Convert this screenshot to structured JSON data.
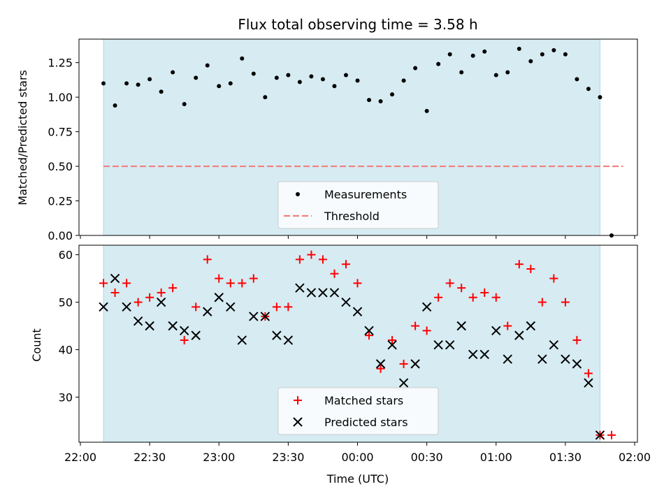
{
  "chart_data": [
    {
      "type": "scatter",
      "title": "Flux total observing time = 3.58 h",
      "ylabel": "Matched/Predicted stars",
      "ylim": [
        0,
        1.42
      ],
      "yticks": [
        "0.00",
        "0.25",
        "0.50",
        "0.75",
        "1.00",
        "1.25"
      ],
      "shaded_range": [
        "22:10",
        "01:45"
      ],
      "legend": {
        "placement": "bottom-center",
        "entries": [
          "Measurements",
          "Threshold"
        ]
      },
      "series": [
        {
          "name": "Measurements",
          "color": "#000000",
          "x": [
            "22:10",
            "22:15",
            "22:20",
            "22:25",
            "22:30",
            "22:35",
            "22:40",
            "22:45",
            "22:50",
            "22:55",
            "23:00",
            "23:05",
            "23:10",
            "23:15",
            "23:20",
            "23:25",
            "23:30",
            "23:35",
            "23:40",
            "23:45",
            "23:50",
            "23:55",
            "00:00",
            "00:05",
            "00:10",
            "00:15",
            "00:20",
            "00:25",
            "00:30",
            "00:35",
            "00:40",
            "00:45",
            "00:50",
            "00:55",
            "01:00",
            "01:05",
            "01:10",
            "01:15",
            "01:20",
            "01:25",
            "01:30",
            "01:35",
            "01:40",
            "01:45",
            "01:50"
          ],
          "y": [
            1.1,
            0.94,
            1.1,
            1.09,
            1.13,
            1.04,
            1.18,
            0.95,
            1.14,
            1.23,
            1.08,
            1.1,
            1.28,
            1.17,
            1.0,
            1.14,
            1.16,
            1.11,
            1.15,
            1.13,
            1.08,
            1.16,
            1.12,
            0.98,
            0.97,
            1.02,
            1.12,
            1.21,
            0.9,
            1.24,
            1.31,
            1.18,
            1.3,
            1.33,
            1.16,
            1.18,
            1.35,
            1.26,
            1.31,
            1.34,
            1.31,
            1.13,
            1.06,
            1.0,
            0.0
          ]
        },
        {
          "name": "Threshold",
          "color": "#f08080",
          "x": [
            "22:10",
            "01:55"
          ],
          "y": [
            0.5,
            0.5
          ]
        }
      ]
    },
    {
      "type": "scatter",
      "title": "",
      "xlabel": "Time (UTC)",
      "ylabel": "Count",
      "ylim": [
        20.5,
        62
      ],
      "yticks": [
        30,
        40,
        50,
        60
      ],
      "xticks": [
        "22:00",
        "22:30",
        "23:00",
        "23:30",
        "00:00",
        "00:30",
        "01:00",
        "01:30",
        "02:00"
      ],
      "shaded_range": [
        "22:10",
        "01:45"
      ],
      "legend": {
        "placement": "bottom-center",
        "entries": [
          "Matched stars",
          "Predicted stars"
        ]
      },
      "series": [
        {
          "name": "Matched stars",
          "color": "#ff0000",
          "marker": "plus",
          "x": [
            "22:10",
            "22:15",
            "22:20",
            "22:25",
            "22:30",
            "22:35",
            "22:40",
            "22:45",
            "22:50",
            "22:55",
            "23:00",
            "23:05",
            "23:10",
            "23:15",
            "23:20",
            "23:25",
            "23:30",
            "23:35",
            "23:40",
            "23:45",
            "23:50",
            "23:55",
            "00:00",
            "00:05",
            "00:10",
            "00:15",
            "00:20",
            "00:25",
            "00:30",
            "00:35",
            "00:40",
            "00:45",
            "00:50",
            "00:55",
            "01:00",
            "01:05",
            "01:10",
            "01:15",
            "01:20",
            "01:25",
            "01:30",
            "01:35",
            "01:40",
            "01:45",
            "01:50"
          ],
          "y": [
            54,
            52,
            54,
            50,
            51,
            52,
            53,
            42,
            49,
            59,
            55,
            54,
            54,
            55,
            47,
            49,
            49,
            59,
            60,
            59,
            56,
            58,
            54,
            43,
            36,
            42,
            37,
            45,
            44,
            51,
            54,
            53,
            51,
            52,
            51,
            45,
            58,
            57,
            50,
            55,
            50,
            42,
            35,
            22,
            22
          ]
        },
        {
          "name": "Predicted stars",
          "color": "#000000",
          "marker": "x",
          "x": [
            "22:10",
            "22:15",
            "22:20",
            "22:25",
            "22:30",
            "22:35",
            "22:40",
            "22:45",
            "22:50",
            "22:55",
            "23:00",
            "23:05",
            "23:10",
            "23:15",
            "23:20",
            "23:25",
            "23:30",
            "23:35",
            "23:40",
            "23:45",
            "23:50",
            "23:55",
            "00:00",
            "00:05",
            "00:10",
            "00:15",
            "00:20",
            "00:25",
            "00:30",
            "00:35",
            "00:40",
            "00:45",
            "00:50",
            "00:55",
            "01:00",
            "01:05",
            "01:10",
            "01:15",
            "01:20",
            "01:25",
            "01:30",
            "01:35",
            "01:40",
            "01:45"
          ],
          "y": [
            49,
            55,
            49,
            46,
            45,
            50,
            45,
            44,
            43,
            48,
            51,
            49,
            42,
            47,
            47,
            43,
            42,
            53,
            52,
            52,
            52,
            50,
            48,
            44,
            37,
            41,
            33,
            37,
            49,
            41,
            41,
            45,
            39,
            39,
            44,
            38,
            43,
            45,
            38,
            41,
            38,
            37,
            33,
            22
          ]
        }
      ]
    }
  ],
  "colors": {
    "shade": "#add8e6",
    "threshold": "#f08080",
    "matched": "#ff0000",
    "predicted": "#000000"
  }
}
